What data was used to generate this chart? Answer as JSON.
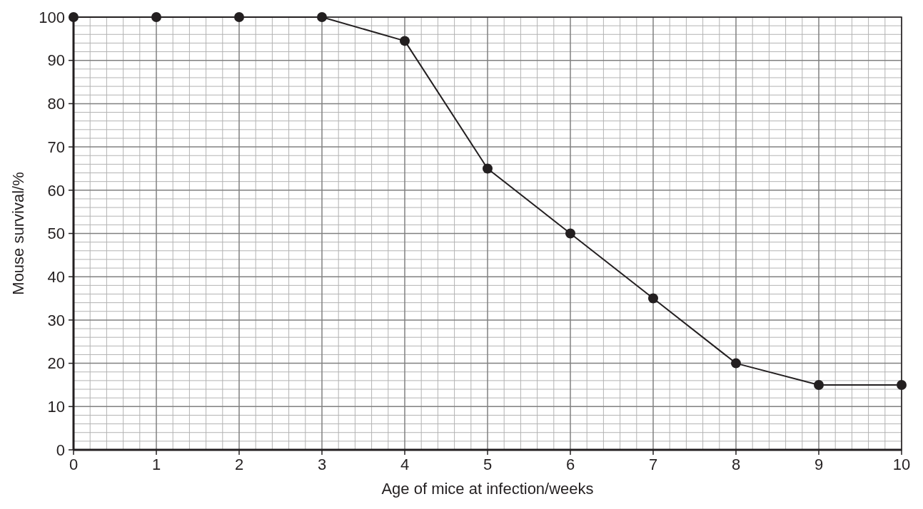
{
  "chart_data": {
    "type": "line",
    "xlabel": "Age of mice at infection/weeks",
    "ylabel": "Mouse survival/%",
    "x": [
      0,
      1,
      2,
      3,
      4,
      5,
      6,
      7,
      8,
      9,
      10
    ],
    "series": [
      {
        "color": "#231f20",
        "values": [
          100,
          100,
          100,
          100,
          94.5,
          65,
          50,
          35,
          20,
          15,
          15
        ]
      }
    ],
    "xlim": [
      0,
      10
    ],
    "xticks": [
      0,
      1,
      2,
      3,
      4,
      5,
      6,
      7,
      8,
      9,
      10
    ],
    "ylim": [
      0,
      100
    ],
    "yticks": [
      0,
      10,
      20,
      30,
      40,
      50,
      60,
      70,
      80,
      90,
      100
    ],
    "grid": true,
    "marker": "circle",
    "line_style": "solid"
  }
}
